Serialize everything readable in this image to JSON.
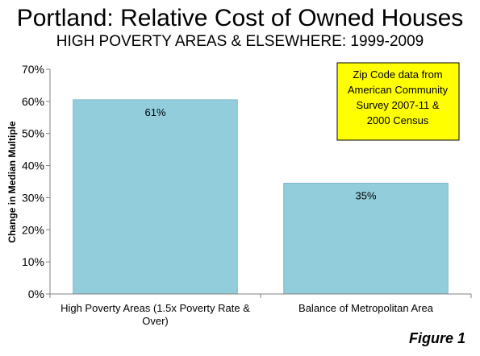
{
  "title": "Portland: Relative Cost of Owned Houses",
  "subtitle": "HIGH POVERTY AREAS & ELSEWHERE: 1999-2009",
  "figure_label": "Figure 1",
  "colors": {
    "bar": "#92cddc",
    "bar_stroke": "#7fb8c8",
    "note_bg": "#ffff00",
    "axis": "#808080"
  },
  "note": [
    "Zip Code data from",
    "American Community",
    "Survey 2007-11 &",
    "2000 Census"
  ],
  "chart_data": {
    "type": "bar",
    "title": "",
    "ylabel": "Change in Median Multiple",
    "xlabel": "",
    "ylim": [
      0,
      70
    ],
    "yticks": [
      0,
      10,
      20,
      30,
      40,
      50,
      60,
      70
    ],
    "ytick_labels": [
      "0%",
      "10%",
      "20%",
      "30%",
      "40%",
      "50%",
      "60%",
      "70%"
    ],
    "categories": [
      "High Poverty Areas (1.5x Poverty Rate & Over)",
      "Balance of Metropolitan Area"
    ],
    "category_lines": [
      [
        "High Poverty Areas (1.5x Poverty Rate &",
        "Over)"
      ],
      [
        "Balance of Metropolitan Area"
      ]
    ],
    "values": [
      60.5,
      34.5
    ],
    "data_labels": [
      "61%",
      "35%"
    ],
    "grid": false,
    "legend": "none"
  }
}
